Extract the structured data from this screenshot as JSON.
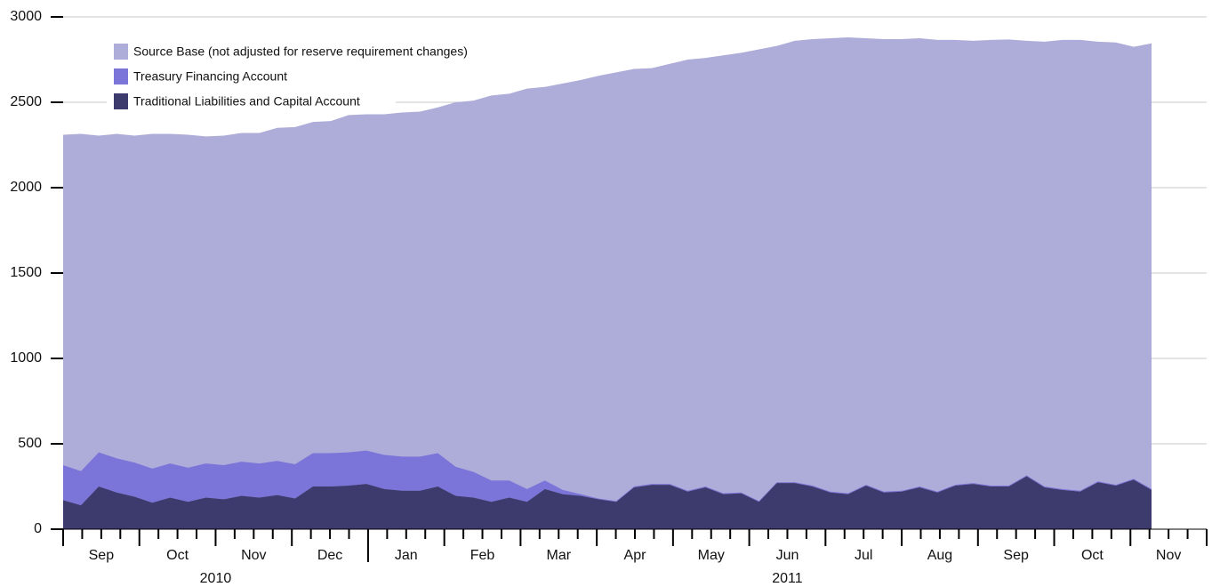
{
  "chart_data": {
    "type": "area",
    "months": [
      "Sep",
      "Oct",
      "Nov",
      "Dec",
      "Jan",
      "Feb",
      "Mar",
      "Apr",
      "May",
      "Jun",
      "Jul",
      "Aug",
      "Sep",
      "Oct",
      "Nov"
    ],
    "years": [
      "2010",
      "2011"
    ],
    "ylim": [
      0,
      3000
    ],
    "yticks": [
      0,
      500,
      1000,
      1500,
      2000,
      2500,
      3000
    ],
    "grid": true,
    "series": [
      {
        "name": "Source Base (not adjusted for reserve requirement changes)",
        "color": "#aeacd9",
        "values": [
          2310,
          2315,
          2305,
          2315,
          2305,
          2315,
          2315,
          2310,
          2300,
          2305,
          2320,
          2320,
          2350,
          2355,
          2385,
          2390,
          2425,
          2430,
          2430,
          2440,
          2445,
          2470,
          2500,
          2510,
          2540,
          2550,
          2580,
          2590,
          2610,
          2630,
          2655,
          2675,
          2695,
          2700,
          2725,
          2750,
          2760,
          2775,
          2790,
          2810,
          2830,
          2860,
          2870,
          2875,
          2880,
          2875,
          2870,
          2870,
          2875,
          2865,
          2865,
          2860,
          2865,
          2868,
          2860,
          2855,
          2865,
          2865,
          2855,
          2850,
          2825,
          2845
        ]
      },
      {
        "name": "Treasury Financing Account",
        "color": "#7b74d9",
        "stack": true,
        "values": [
          205,
          200,
          200,
          200,
          200,
          200,
          200,
          200,
          200,
          200,
          200,
          200,
          200,
          200,
          195,
          195,
          195,
          195,
          200,
          200,
          200,
          195,
          170,
          150,
          125,
          100,
          75,
          50,
          25,
          10,
          5,
          5,
          5,
          5,
          5,
          5,
          5,
          5,
          5,
          5,
          5,
          5,
          5,
          5,
          5,
          5,
          5,
          5,
          5,
          5,
          5,
          5,
          5,
          5,
          5,
          5,
          5,
          5,
          5,
          5,
          5,
          5
        ]
      },
      {
        "name": "Traditional Liabilities and Capital Account",
        "color": "#3d3a6e",
        "stack": true,
        "values": [
          170,
          140,
          250,
          215,
          190,
          155,
          185,
          160,
          185,
          175,
          195,
          185,
          200,
          180,
          250,
          250,
          255,
          265,
          235,
          225,
          225,
          250,
          195,
          185,
          160,
          185,
          160,
          235,
          205,
          195,
          175,
          160,
          245,
          260,
          260,
          220,
          245,
          205,
          210,
          160,
          270,
          270,
          250,
          215,
          205,
          255,
          215,
          220,
          245,
          215,
          255,
          265,
          250,
          250,
          310,
          245,
          230,
          220,
          275,
          255,
          290,
          230
        ]
      }
    ]
  }
}
